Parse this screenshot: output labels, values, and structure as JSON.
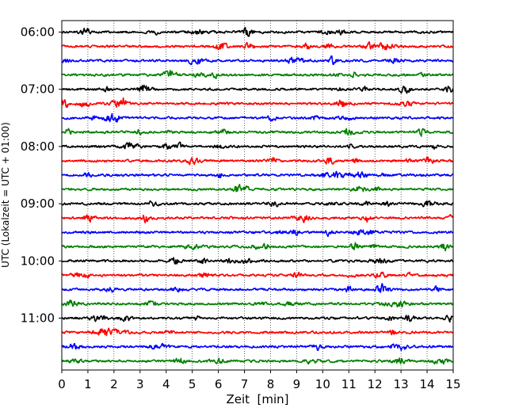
{
  "chart_data": {
    "type": "line",
    "title": "",
    "xlabel": "Zeit  [min]",
    "ylabel": "UTC (Lokalzeit = UTC + 01:00)",
    "xlim": [
      0,
      15
    ],
    "x_ticks": [
      "0",
      "1",
      "2",
      "3",
      "4",
      "5",
      "6",
      "7",
      "8",
      "9",
      "10",
      "11",
      "12",
      "13",
      "14",
      "15"
    ],
    "y_ticks": [
      "06:00",
      "07:00",
      "08:00",
      "09:00",
      "10:00",
      "11:00"
    ],
    "grid": "vertical dotted",
    "legend": "none",
    "trace_interval_min": 15,
    "start_time": "06:00",
    "trace_colors": [
      "#000000",
      "#ff0000",
      "#0000ff",
      "#007f00"
    ],
    "series": [
      {
        "start": "06:00",
        "color": "#000000"
      },
      {
        "start": "06:15",
        "color": "#ff0000"
      },
      {
        "start": "06:30",
        "color": "#0000ff"
      },
      {
        "start": "06:45",
        "color": "#007f00"
      },
      {
        "start": "07:00",
        "color": "#000000"
      },
      {
        "start": "07:15",
        "color": "#ff0000"
      },
      {
        "start": "07:30",
        "color": "#0000ff"
      },
      {
        "start": "07:45",
        "color": "#007f00"
      },
      {
        "start": "08:00",
        "color": "#000000"
      },
      {
        "start": "08:15",
        "color": "#ff0000"
      },
      {
        "start": "08:30",
        "color": "#0000ff"
      },
      {
        "start": "08:45",
        "color": "#007f00"
      },
      {
        "start": "09:00",
        "color": "#000000"
      },
      {
        "start": "09:15",
        "color": "#ff0000"
      },
      {
        "start": "09:30",
        "color": "#0000ff"
      },
      {
        "start": "09:45",
        "color": "#007f00"
      },
      {
        "start": "10:00",
        "color": "#000000"
      },
      {
        "start": "10:15",
        "color": "#ff0000"
      },
      {
        "start": "10:30",
        "color": "#0000ff"
      },
      {
        "start": "10:45",
        "color": "#007f00"
      },
      {
        "start": "11:00",
        "color": "#000000"
      },
      {
        "start": "11:15",
        "color": "#ff0000"
      },
      {
        "start": "11:30",
        "color": "#0000ff"
      },
      {
        "start": "11:45",
        "color": "#007f00"
      }
    ]
  }
}
